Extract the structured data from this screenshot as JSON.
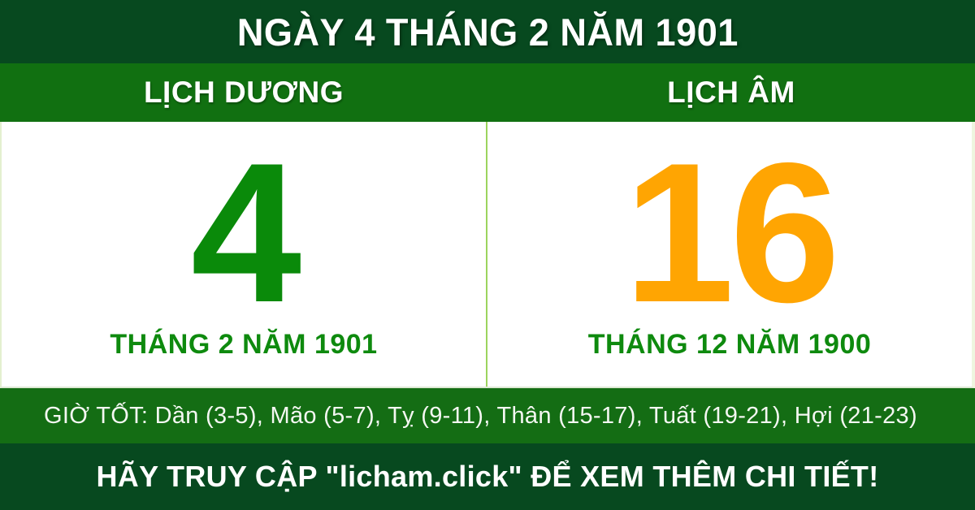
{
  "header": {
    "title": "NGÀY 4 THÁNG 2 NĂM 1901"
  },
  "calendar_headers": {
    "solar_label": "LỊCH DƯƠNG",
    "lunar_label": "LỊCH ÂM"
  },
  "solar": {
    "day": "4",
    "month_year": "THÁNG 2 NĂM 1901"
  },
  "lunar": {
    "day": "16",
    "month_year": "THÁNG 12 NĂM 1900"
  },
  "good_hours": {
    "text": "GIỜ TỐT: Dần (3-5), Mão (5-7), Tỵ (9-11), Thân (15-17), Tuất (19-21), Hợi (21-23)"
  },
  "footer": {
    "cta": "HÃY TRUY CẬP \"licham.click\" ĐỂ XEM THÊM CHI TIẾT!"
  },
  "colors": {
    "dark_green": "#07491F",
    "medium_green": "#117011",
    "good_hours_green": "#146D14",
    "solar_day_green": "#0A8A0A",
    "lunar_day_orange": "#FFA502",
    "month_text_green": "#0E8A0E",
    "divider_light_green": "#9CD45E",
    "panel_white": "#FFFFFF",
    "text_white": "#FFFFFF"
  }
}
